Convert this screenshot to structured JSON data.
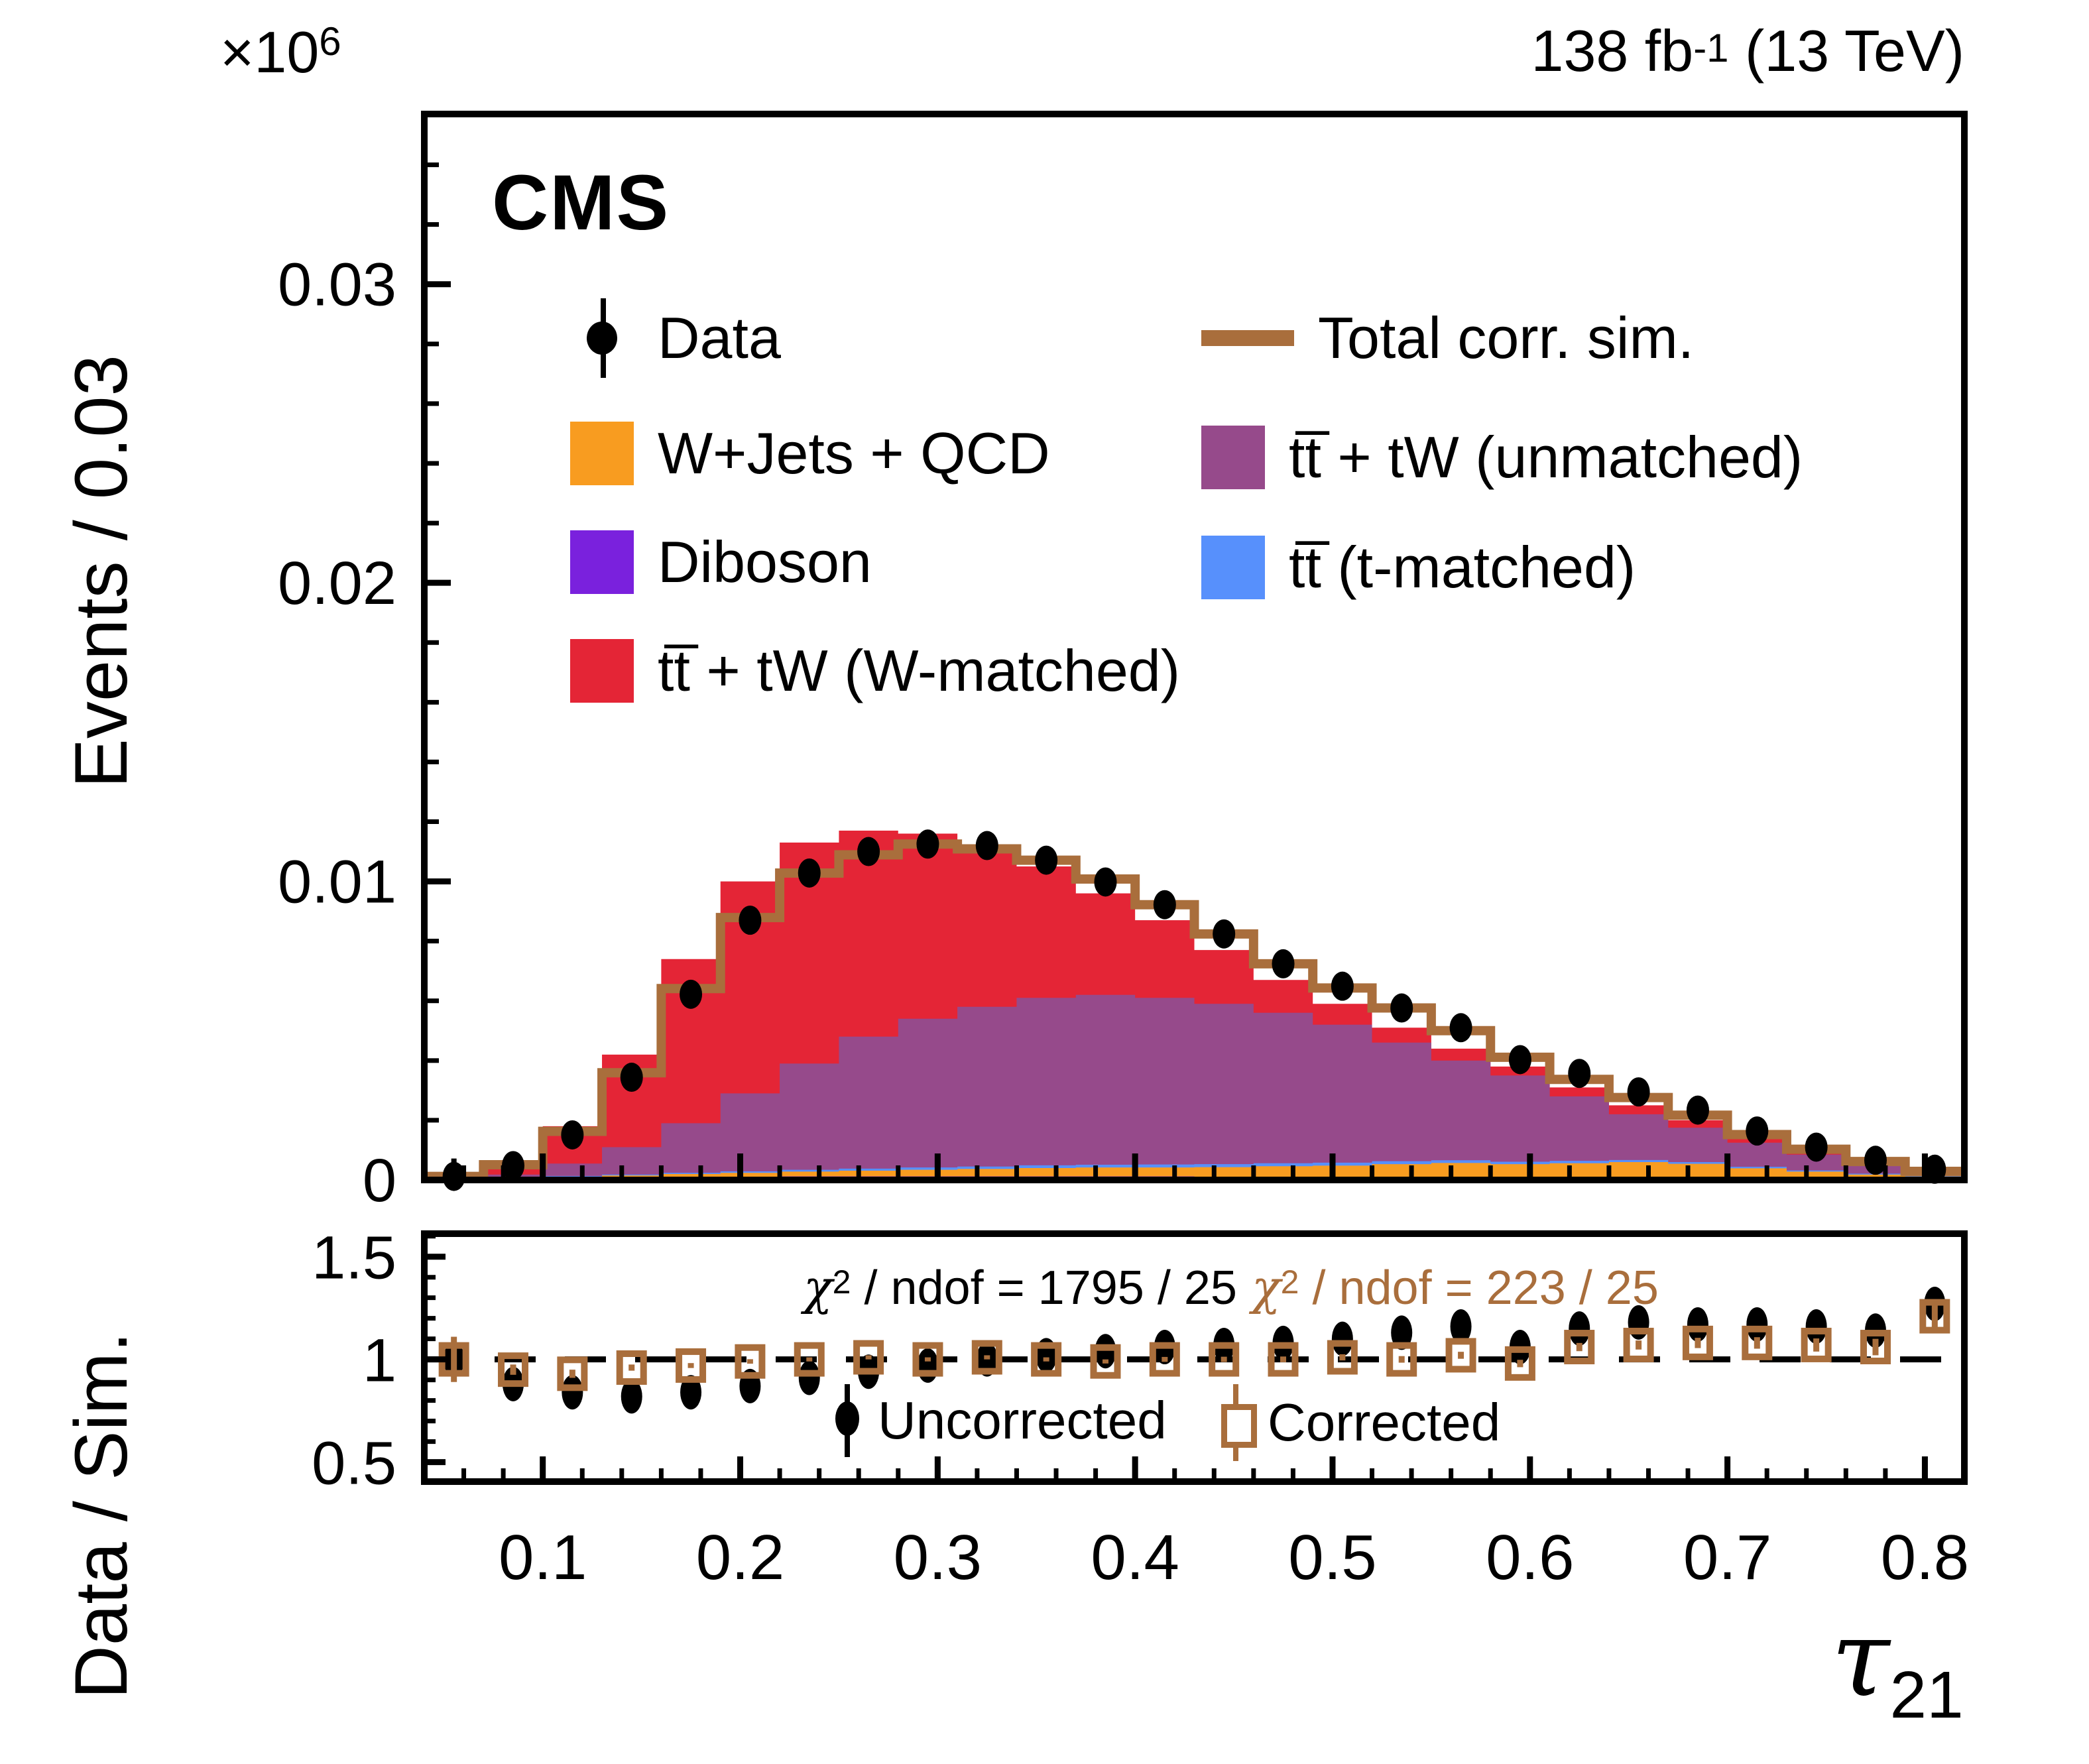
{
  "header": {
    "cms": "CMS",
    "lumi_base": "138 fb",
    "lumi_sup": "-1",
    "lumi_rest": " (13 TeV)"
  },
  "legend": {
    "items": [
      {
        "label": "Data",
        "type": "point",
        "color": "#000000"
      },
      {
        "label": "W+Jets + QCD",
        "type": "box",
        "color": "#f89c20"
      },
      {
        "label": "Diboson",
        "type": "box",
        "color": "#7a21dd"
      },
      {
        "label": "tt̅ + tW (W-matched)",
        "type": "box",
        "color": "#e42536"
      },
      {
        "label": "Total corr. sim.",
        "type": "line",
        "color": "#a96e3c"
      },
      {
        "label": "tt̅ + tW (unmatched)",
        "type": "box",
        "color": "#964a8b"
      },
      {
        "label": "tt̅ (t-matched)",
        "type": "box",
        "color": "#5790fc"
      }
    ]
  },
  "chart_data": {
    "type": "bar",
    "subtype": "stacked-histogram-with-ratio",
    "x": {
      "title_base": "τ",
      "title_sub": "21",
      "xlim": [
        0.04,
        0.82
      ],
      "bin_width": 0.03,
      "centers": [
        0.055,
        0.085,
        0.115,
        0.145,
        0.175,
        0.205,
        0.235,
        0.265,
        0.295,
        0.325,
        0.355,
        0.385,
        0.415,
        0.445,
        0.475,
        0.505,
        0.535,
        0.565,
        0.595,
        0.625,
        0.655,
        0.685,
        0.715,
        0.745,
        0.775,
        0.805
      ],
      "ticks": [
        0.1,
        0.2,
        0.3,
        0.4,
        0.5,
        0.6,
        0.7,
        0.8
      ],
      "tick_labels": [
        "0.1",
        "0.2",
        "0.3",
        "0.4",
        "0.5",
        "0.6",
        "0.7",
        "0.8"
      ],
      "minor_step": 0.02
    },
    "main": {
      "ylabel": "Events / 0.03",
      "exponent_base": "×10",
      "exponent_sup": "6",
      "ylim": [
        0,
        0.0357
      ],
      "yticks": [
        0,
        0.01,
        0.02,
        0.03
      ],
      "ytick_labels": [
        "0",
        "0.01",
        "0.02",
        "0.03"
      ],
      "minor_step": 0.002,
      "grid": false,
      "legend_position": "top-inside"
    },
    "stack": [
      {
        "name": "Diboson",
        "color": "#7a21dd",
        "values": [
          2e-05,
          4e-05,
          6e-05,
          8e-05,
          0.0001,
          0.00011,
          0.00012,
          0.00012,
          0.00012,
          0.00012,
          0.00012,
          0.00012,
          0.00012,
          0.00011,
          0.00011,
          0.0001,
          0.0001,
          9e-05,
          9e-05,
          8e-05,
          7e-05,
          6e-05,
          5e-05,
          4e-05,
          3e-05,
          2e-05
        ]
      },
      {
        "name": "W+Jets + QCD",
        "color": "#f89c20",
        "values": [
          2e-05,
          3e-05,
          5e-05,
          7e-05,
          0.0001,
          0.00013,
          0.00016,
          0.00019,
          0.00022,
          0.00025,
          0.00028,
          0.0003,
          0.0003,
          0.00032,
          0.00035,
          0.00038,
          0.00043,
          0.00048,
          0.00044,
          0.00048,
          0.00053,
          0.00048,
          0.00034,
          0.00024,
          0.00015,
          0.0001
        ]
      },
      {
        "name": "tt̅ (t-matched)",
        "color": "#5790fc",
        "values": [
          1e-05,
          1e-05,
          2e-05,
          3e-05,
          4e-05,
          5e-05,
          6e-05,
          7e-05,
          8e-05,
          8e-05,
          9e-05,
          9e-05,
          0.0001,
          0.0001,
          0.0001,
          0.0001,
          0.0001,
          9e-05,
          8e-05,
          8e-05,
          7e-05,
          6e-05,
          5e-05,
          4e-05,
          3e-05,
          2e-05
        ]
      },
      {
        "name": "tt̅ + tW (unmatched)",
        "color": "#964a8b",
        "values": [
          3e-05,
          0.0001,
          0.00042,
          0.00092,
          0.00166,
          0.00261,
          0.00356,
          0.00442,
          0.00498,
          0.00535,
          0.00561,
          0.00569,
          0.00558,
          0.00537,
          0.00504,
          0.00462,
          0.00397,
          0.00334,
          0.00289,
          0.00216,
          0.00153,
          0.00115,
          0.00081,
          0.00053,
          0.00029,
          0.00011
        ]
      },
      {
        "name": "tt̅ + tW (W-matched)",
        "color": "#e42536",
        "values": [
          4e-05,
          0.00037,
          0.00125,
          0.0031,
          0.0055,
          0.0071,
          0.0074,
          0.0069,
          0.0062,
          0.0054,
          0.0044,
          0.0034,
          0.0026,
          0.0018,
          0.0011,
          0.0007,
          0.0005,
          0.0004,
          0.0003,
          0.0003,
          0.0003,
          0.00025,
          0.00015,
          0.0001,
          8e-05,
          3e-05
        ]
      }
    ],
    "total_corrected": {
      "name": "Total corr. sim.",
      "color": "#a96e3c",
      "values": [
        0.00012,
        0.00051,
        0.00163,
        0.00359,
        0.00641,
        0.00879,
        0.01028,
        0.01089,
        0.01125,
        0.01109,
        0.01071,
        0.01008,
        0.00922,
        0.00824,
        0.00724,
        0.00643,
        0.00576,
        0.005,
        0.00411,
        0.00337,
        0.00276,
        0.00217,
        0.00152,
        0.00103,
        0.00062,
        0.00029
      ]
    },
    "data_points": {
      "name": "Data",
      "color": "#000000",
      "values": [
        0.00012,
        0.00048,
        0.00151,
        0.00344,
        0.00622,
        0.0087,
        0.01028,
        0.011,
        0.01125,
        0.0112,
        0.01071,
        0.00998,
        0.00922,
        0.00824,
        0.00724,
        0.00649,
        0.00576,
        0.0051,
        0.00403,
        0.00357,
        0.00295,
        0.00234,
        0.00164,
        0.0011,
        0.00066,
        0.00036
      ],
      "errors": [
        0.0006,
        0.0002,
        0.00012,
        0.0001,
        9e-05,
        8e-05,
        8e-05,
        8e-05,
        8e-05,
        8e-05,
        8e-05,
        8e-05,
        8e-05,
        8e-05,
        8e-05,
        8e-05,
        8e-05,
        8e-05,
        8e-05,
        8e-05,
        8e-05,
        8e-05,
        8e-05,
        8e-05,
        8e-05,
        0.0001
      ]
    },
    "ratio": {
      "ylabel": "Data / Sim.",
      "ylim": [
        0.405,
        1.612
      ],
      "yticks": [
        0.5,
        1,
        1.5
      ],
      "ytick_labels": [
        "0.5",
        "1",
        "1.5"
      ],
      "minor_step": 0.1,
      "reference_line": 1,
      "chi2_uncorrected": {
        "chi": "χ",
        "exp": "2",
        "rest": " / ndof = 1795 / 25",
        "color": "#000000"
      },
      "chi2_corrected": {
        "chi": "χ",
        "exp": "2",
        "rest": " / ndof = 223 / 25",
        "color": "#a96e3c"
      },
      "legend_uncorrected": "Uncorrected",
      "legend_corrected": "Corrected",
      "uncorrected": {
        "values": [
          1.0,
          0.88,
          0.84,
          0.82,
          0.84,
          0.87,
          0.91,
          0.94,
          0.97,
          1.0,
          1.02,
          1.04,
          1.06,
          1.07,
          1.08,
          1.1,
          1.13,
          1.16,
          1.06,
          1.15,
          1.18,
          1.17,
          1.17,
          1.16,
          1.14,
          1.27
        ],
        "errors": [
          0.1,
          0.02,
          0.015,
          0.012,
          0.01,
          0.01,
          0.01,
          0.01,
          0.01,
          0.01,
          0.01,
          0.01,
          0.012,
          0.012,
          0.013,
          0.014,
          0.015,
          0.016,
          0.017,
          0.018,
          0.02,
          0.022,
          0.025,
          0.03,
          0.035,
          0.07
        ]
      },
      "corrected": {
        "values": [
          1.0,
          0.95,
          0.93,
          0.96,
          0.97,
          0.99,
          1.0,
          1.01,
          1.0,
          1.01,
          1.0,
          0.99,
          1.0,
          1.0,
          1.0,
          1.01,
          1.0,
          1.02,
          0.98,
          1.06,
          1.07,
          1.08,
          1.08,
          1.07,
          1.06,
          1.21
        ],
        "errors": [
          0.11,
          0.025,
          0.02,
          0.015,
          0.012,
          0.011,
          0.01,
          0.01,
          0.01,
          0.01,
          0.01,
          0.01,
          0.012,
          0.013,
          0.014,
          0.015,
          0.016,
          0.017,
          0.018,
          0.02,
          0.022,
          0.025,
          0.028,
          0.032,
          0.04,
          0.08
        ]
      }
    }
  }
}
